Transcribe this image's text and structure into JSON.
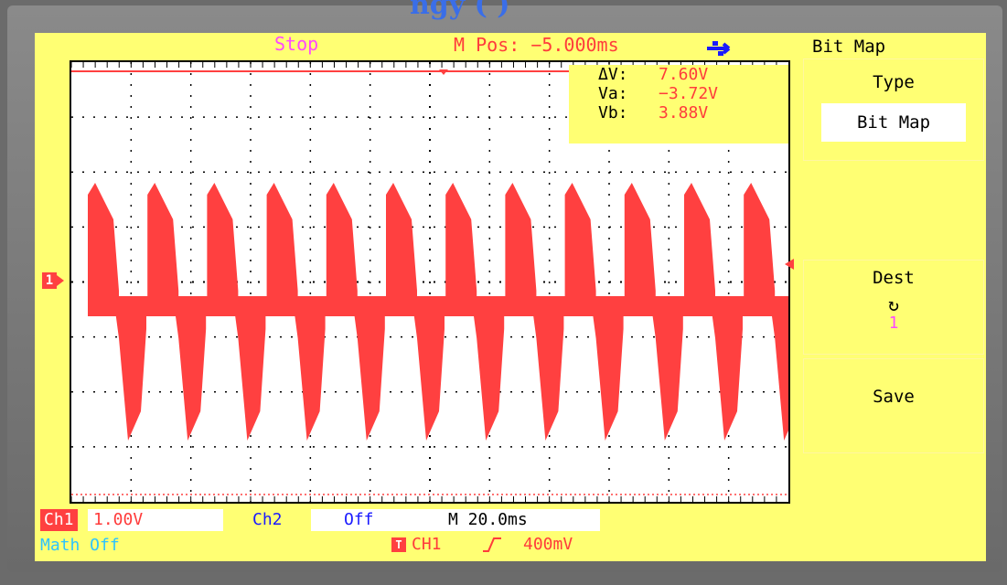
{
  "header": {
    "title_partial": "ngy (               )"
  },
  "topbar": {
    "status": "Stop",
    "mpos": "M Pos: −5.000ms",
    "usb_icon": "usb-icon"
  },
  "cursor_readout": {
    "dv_label": "ΔV:",
    "dv_value": "7.60V",
    "va_label": "Va:",
    "va_value": "−3.72V",
    "vb_label": "Vb:",
    "vb_value": "3.88V"
  },
  "channel_marker": "1",
  "menu": {
    "title": "Bit Map",
    "type_label": "Type",
    "type_value": "Bit Map",
    "dest_label": "Dest",
    "dest_icon": "refresh-icon",
    "dest_value": "1",
    "save_label": "Save"
  },
  "status": {
    "ch1_label": "Ch1",
    "ch1_scale": "1.00V",
    "ch2_label": "Ch2",
    "ch2_state": "Off",
    "timebase": "M 20.0ms",
    "math": "Math Off",
    "trigger_icon": "T",
    "trigger_source": "CH1",
    "trigger_edge": "rising-edge-icon",
    "trigger_level": "400mV"
  },
  "colors": {
    "screen_bg": "#ffff73",
    "waveform": "#ff4040",
    "ch2": "#1a1aff",
    "math": "#2dc4ff"
  }
}
